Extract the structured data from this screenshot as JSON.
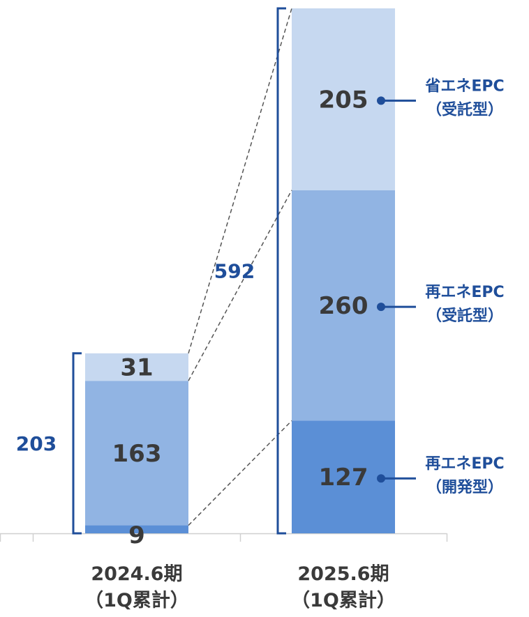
{
  "chart_data": {
    "type": "bar",
    "stacked": true,
    "categories": [
      [
        "2024.6期",
        "（1Q累計）"
      ],
      [
        "2025.6期",
        "（1Q累計）"
      ]
    ],
    "series": [
      {
        "name": "再エネEPC（開発型）",
        "legend": [
          "再エネEPC",
          "（開発型）"
        ],
        "values": [
          9,
          127
        ],
        "color": "#5b8fd6"
      },
      {
        "name": "再エネEPC（受託型）",
        "legend": [
          "再エネEPC",
          "（受託型）"
        ],
        "values": [
          163,
          260
        ],
        "color": "#91b4e3"
      },
      {
        "name": "省エネEPC（受託型）",
        "legend": [
          "省エネEPC",
          "（受託型）"
        ],
        "values": [
          31,
          205
        ],
        "color": "#c6d8f0"
      }
    ],
    "totals": [
      203,
      592
    ],
    "ylim": [
      0,
      592
    ],
    "grid": false,
    "legend_position": "right",
    "colors": {
      "accent": "#1f4e9a",
      "text": "#3a3a3a",
      "axis": "#d0d0d0",
      "connector": "#555555"
    }
  }
}
